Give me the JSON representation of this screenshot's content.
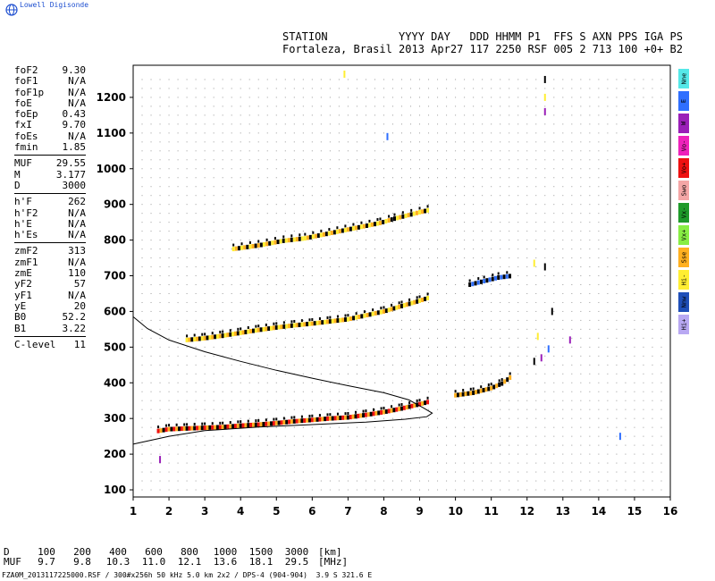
{
  "brand": "Lowell Digisonde",
  "header": {
    "line1": "STATION           YYYY DAY   DDD HHMM P1  FFS S AXN PPS IGA PS",
    "line2": "Fortaleza, Brasil 2013 Apr27 117 2250 RSF 005 2 713 100 +0+ B2"
  },
  "params": [
    [
      [
        "foF2",
        "9.30"
      ],
      [
        "foF1",
        "N/A"
      ],
      [
        "foF1p",
        "N/A"
      ],
      [
        "foE",
        "N/A"
      ],
      [
        "foEp",
        "0.43"
      ],
      [
        "fxI",
        "9.70"
      ],
      [
        "foEs",
        "N/A"
      ],
      [
        "fmin",
        "1.85"
      ]
    ],
    [
      [
        "MUF",
        "29.55"
      ],
      [
        "M",
        "3.177"
      ],
      [
        "D",
        "3000"
      ]
    ],
    [
      [
        "h'F",
        "262"
      ],
      [
        "h'F2",
        "N/A"
      ],
      [
        "h'E",
        "N/A"
      ],
      [
        "h'Es",
        "N/A"
      ]
    ],
    [
      [
        "zmF2",
        "313"
      ],
      [
        "zmF1",
        "N/A"
      ],
      [
        "zmE",
        "110"
      ],
      [
        "yF2",
        "57"
      ],
      [
        "yF1",
        "N/A"
      ],
      [
        "yE",
        "20"
      ],
      [
        "B0",
        "52.2"
      ],
      [
        "B1",
        "3.22"
      ]
    ],
    [
      [
        "C-level",
        "11"
      ]
    ]
  ],
  "legend": [
    {
      "label": "Nne",
      "color": "#55e8e8"
    },
    {
      "label": "E",
      "color": "#2f6fff"
    },
    {
      "label": "W",
      "color": "#9a1fb8"
    },
    {
      "label": "Vo-",
      "color": "#ee22bb"
    },
    {
      "label": "Vo+",
      "color": "#ee1111"
    },
    {
      "label": "Swo",
      "color": "#f4a6a6"
    },
    {
      "label": "Vx-",
      "color": "#1f9a2a"
    },
    {
      "label": "Vx+",
      "color": "#88ee44"
    },
    {
      "label": "Sse",
      "color": "#ffb020"
    },
    {
      "label": "Hi-",
      "color": "#ffee33"
    },
    {
      "label": "Nnw",
      "color": "#1f4fb8"
    },
    {
      "label": "Hi+",
      "color": "#b8a8f2"
    }
  ],
  "muf_table": {
    "d_label": "D",
    "muf_label": "MUF",
    "d_values": [
      "100",
      "200",
      "400",
      "600",
      "800",
      "1000",
      "1500",
      "3000"
    ],
    "muf_values": [
      "9.7",
      "9.8",
      "10.3",
      "11.0",
      "12.1",
      "13.6",
      "18.1",
      "29.5"
    ],
    "d_unit": "[km]",
    "muf_unit": "[MHz]"
  },
  "footer": "FZA0M_2013117225000.RSF / 300#x256h 50 kHz 5.0 km 2x2 / DPS-4 (904-904)  3.9 S 321.6 E",
  "chart_data": {
    "type": "scatter",
    "xlim": [
      1,
      16
    ],
    "ylim": [
      80,
      1290
    ],
    "x_ticks": [
      1,
      2,
      3,
      4,
      5,
      6,
      7,
      8,
      9,
      10,
      11,
      12,
      13,
      14,
      15,
      16
    ],
    "y_ticks": [
      100,
      200,
      300,
      400,
      500,
      600,
      700,
      800,
      900,
      1000,
      1100,
      1200
    ],
    "grid": true,
    "traces": [
      {
        "name": "F2 o-trace",
        "points": [
          [
            1.7,
            265
          ],
          [
            2.0,
            270
          ],
          [
            2.5,
            272
          ],
          [
            3.0,
            274
          ],
          [
            3.5,
            276
          ],
          [
            4.0,
            280
          ],
          [
            4.5,
            283
          ],
          [
            5.0,
            287
          ],
          [
            5.5,
            292
          ],
          [
            6.0,
            296
          ],
          [
            6.5,
            300
          ],
          [
            7.0,
            303
          ],
          [
            7.5,
            310
          ],
          [
            8.0,
            318
          ],
          [
            8.5,
            328
          ],
          [
            9.0,
            340
          ],
          [
            9.3,
            348
          ]
        ],
        "colors": [
          "#ee1111",
          "#ffb020",
          "#000000"
        ]
      },
      {
        "name": "F2 x-trace",
        "points": [
          [
            10.0,
            365
          ],
          [
            10.5,
            372
          ],
          [
            11.0,
            385
          ],
          [
            11.3,
            398
          ],
          [
            11.6,
            420
          ]
        ],
        "colors": [
          "#ffb020",
          "#000000"
        ]
      },
      {
        "name": "2F2 trace",
        "points": [
          [
            2.5,
            520
          ],
          [
            3.0,
            525
          ],
          [
            3.5,
            532
          ],
          [
            4.0,
            540
          ],
          [
            4.5,
            548
          ],
          [
            5.0,
            555
          ],
          [
            5.5,
            561
          ],
          [
            6.0,
            566
          ],
          [
            6.5,
            572
          ],
          [
            7.0,
            578
          ],
          [
            8.0,
            600
          ],
          [
            8.5,
            615
          ],
          [
            9.0,
            630
          ],
          [
            9.3,
            640
          ]
        ],
        "colors": [
          "#ffee33",
          "#ffb020",
          "#000000"
        ]
      },
      {
        "name": "2F2 x-trace",
        "points": [
          [
            10.4,
            675
          ],
          [
            10.8,
            685
          ],
          [
            11.2,
            695
          ],
          [
            11.6,
            700
          ]
        ],
        "colors": [
          "#000000",
          "#2f6fff"
        ]
      },
      {
        "name": "3F2 trace",
        "points": [
          [
            3.8,
            775
          ],
          [
            4.5,
            785
          ],
          [
            5.2,
            798
          ],
          [
            5.8,
            805
          ],
          [
            7.9,
            848
          ],
          [
            8.3,
            860
          ],
          [
            9.0,
            878
          ],
          [
            9.3,
            885
          ]
        ],
        "colors": [
          "#ffee33",
          "#ffb020",
          "#000000"
        ]
      },
      {
        "name": "spread",
        "points": [
          [
            12.5,
            1200
          ],
          [
            12.5,
            1250
          ],
          [
            12.5,
            1160
          ],
          [
            8.1,
            1090
          ],
          [
            6.9,
            1265
          ],
          [
            12.2,
            460
          ],
          [
            12.4,
            470
          ],
          [
            12.6,
            495
          ],
          [
            12.3,
            530
          ],
          [
            12.7,
            600
          ],
          [
            13.2,
            520
          ],
          [
            14.6,
            250
          ],
          [
            12.2,
            735
          ],
          [
            12.5,
            725
          ],
          [
            1.75,
            185
          ]
        ],
        "colors": [
          "#ffee33",
          "#000000",
          "#9a1fb8",
          "#2f6fff"
        ]
      }
    ],
    "profile": [
      [
        1.0,
        585
      ],
      [
        1.4,
        552
      ],
      [
        2.0,
        520
      ],
      [
        3.0,
        487
      ],
      [
        4.0,
        460
      ],
      [
        5.0,
        435
      ],
      [
        6.0,
        413
      ],
      [
        7.0,
        392
      ],
      [
        8.0,
        372
      ],
      [
        8.7,
        352
      ],
      [
        9.1,
        330
      ],
      [
        9.35,
        315
      ],
      [
        9.2,
        305
      ],
      [
        8.6,
        298
      ],
      [
        7.5,
        290
      ],
      [
        6.0,
        283
      ],
      [
        4.5,
        276
      ],
      [
        3.0,
        266
      ],
      [
        2.0,
        250
      ],
      [
        1.0,
        228
      ]
    ]
  }
}
